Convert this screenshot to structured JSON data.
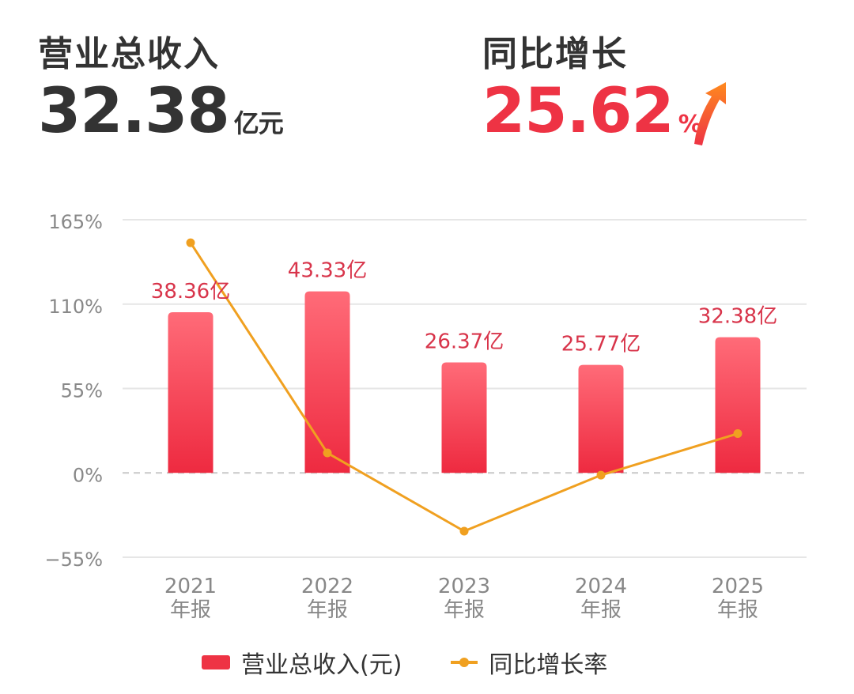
{
  "kpi": {
    "revenue_label": "营业总收入",
    "revenue_value": "32.38",
    "revenue_unit": "亿元",
    "growth_label": "同比增长",
    "growth_value": "25.62",
    "growth_unit": "%"
  },
  "colors": {
    "bar": "#ee3344",
    "bar_light": "#ff6b78",
    "line": "#f0a020",
    "bar_label": "#d8344a",
    "axis_text": "#888888",
    "grid": "#e6e6e6"
  },
  "chart_data": {
    "type": "bar+line",
    "categories": [
      [
        "2021",
        "年报"
      ],
      [
        "2022",
        "年报"
      ],
      [
        "2023",
        "年报"
      ],
      [
        "2024",
        "年报"
      ],
      [
        "2025",
        "年报"
      ]
    ],
    "series": [
      {
        "name": "营业总收入(元)",
        "type": "bar",
        "values": [
          38.36,
          43.33,
          26.37,
          25.77,
          32.38
        ],
        "labels": [
          "38.36亿",
          "43.33亿",
          "26.37亿",
          "25.77亿",
          "32.38亿"
        ]
      },
      {
        "name": "同比增长率",
        "type": "line",
        "unit": "%",
        "values": [
          150,
          13,
          -38,
          -1.5,
          25.62
        ]
      }
    ],
    "y_axis": {
      "ticks": [
        "165%",
        "110%",
        "55%",
        "0%",
        "−55%"
      ],
      "tick_values": [
        165,
        110,
        55,
        0,
        -55
      ],
      "ylim": [
        -55,
        165
      ]
    },
    "legend_position": "bottom"
  }
}
